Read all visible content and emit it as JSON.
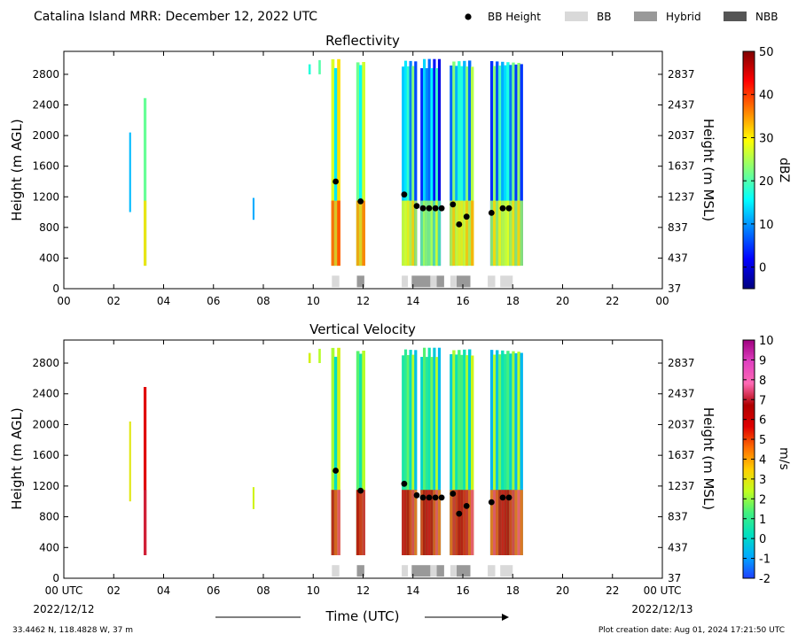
{
  "header": {
    "title": "Catalina Island MRR:  December 12, 2022 UTC",
    "legend": [
      {
        "label": "BB Height",
        "kind": "dot",
        "color": "#000000"
      },
      {
        "label": "BB",
        "kind": "box",
        "color": "#d9d9d9"
      },
      {
        "label": "Hybrid",
        "kind": "box",
        "color": "#999999"
      },
      {
        "label": "NBB",
        "kind": "box",
        "color": "#555555"
      }
    ]
  },
  "footer": {
    "location": "33.4462 N, 118.4828 W, 37 m",
    "created": "Plot creation date: Aug 01, 2024 17:21:50 UTC",
    "start_date": "2022/12/12",
    "end_date": "2022/12/13",
    "time_axis_label": "Time (UTC)"
  },
  "chart_data": [
    {
      "type": "heatmap",
      "title": "Reflectivity",
      "ylabel": "Height (m AGL)",
      "y2label": "Height (m MSL)",
      "xlim": [
        0,
        24
      ],
      "ylim": [
        0,
        3100
      ],
      "x_ticks": [
        "00",
        "02",
        "04",
        "06",
        "08",
        "10",
        "12",
        "14",
        "16",
        "18",
        "20",
        "22",
        "00"
      ],
      "y_ticks": [
        0,
        400,
        800,
        1200,
        1600,
        2000,
        2400,
        2800
      ],
      "y2_ticks": [
        37,
        437,
        837,
        1237,
        1637,
        2037,
        2437,
        2837
      ],
      "colorbar": {
        "label": "dBZ",
        "range": [
          -5,
          50
        ],
        "ticks": [
          0,
          10,
          20,
          30,
          40,
          50
        ],
        "colors": [
          "#00007f",
          "#0000ff",
          "#007fff",
          "#00ffff",
          "#7fff7f",
          "#ffff00",
          "#ff7f00",
          "#ff0000",
          "#7f0000"
        ]
      },
      "bright_band_height_m_agl": [
        {
          "x": 10.9,
          "y": 1400
        },
        {
          "x": 11.9,
          "y": 1140
        },
        {
          "x": 13.65,
          "y": 1230
        },
        {
          "x": 14.15,
          "y": 1080
        },
        {
          "x": 14.4,
          "y": 1050
        },
        {
          "x": 14.65,
          "y": 1050
        },
        {
          "x": 14.9,
          "y": 1050
        },
        {
          "x": 15.15,
          "y": 1050
        },
        {
          "x": 15.6,
          "y": 1100
        },
        {
          "x": 15.85,
          "y": 840
        },
        {
          "x": 16.15,
          "y": 940
        },
        {
          "x": 17.15,
          "y": 990
        },
        {
          "x": 17.6,
          "y": 1050
        },
        {
          "x": 17.85,
          "y": 1050
        }
      ],
      "bb_type_segments": [
        {
          "start": 10.75,
          "end": 11.05,
          "class": "BB"
        },
        {
          "start": 11.75,
          "end": 12.05,
          "class": "Hybrid"
        },
        {
          "start": 13.55,
          "end": 13.8,
          "class": "BB"
        },
        {
          "start": 13.95,
          "end": 14.7,
          "class": "Hybrid"
        },
        {
          "start": 14.7,
          "end": 14.95,
          "class": "BB"
        },
        {
          "start": 14.95,
          "end": 15.25,
          "class": "Hybrid"
        },
        {
          "start": 15.5,
          "end": 15.75,
          "class": "BB"
        },
        {
          "start": 15.75,
          "end": 16.3,
          "class": "Hybrid"
        },
        {
          "start": 17.0,
          "end": 17.3,
          "class": "BB"
        },
        {
          "start": 17.5,
          "end": 18.0,
          "class": "BB"
        }
      ],
      "echo_columns": [
        {
          "x": 2.65,
          "w": 0.06,
          "ytop": 2100,
          "ybot": 1000,
          "val": 8
        },
        {
          "x": 3.25,
          "w": 0.1,
          "ytop": 2600,
          "ybot": 300,
          "val": 14
        },
        {
          "x": 7.6,
          "w": 0.06,
          "ytop": 1300,
          "ybot": 900,
          "val": 2
        },
        {
          "x": 9.85,
          "w": 0.08,
          "ytop": 3000,
          "ybot": 2800,
          "val": 8
        },
        {
          "x": 10.25,
          "w": 0.08,
          "ytop": 3000,
          "ybot": 2800,
          "val": 12
        },
        {
          "x": 10.9,
          "w": 0.35,
          "ytop": 3000,
          "ybot": 300,
          "val": 22
        },
        {
          "x": 11.9,
          "w": 0.35,
          "ytop": 3000,
          "ybot": 300,
          "val": 20
        },
        {
          "x": 13.85,
          "w": 0.6,
          "ytop": 3000,
          "ybot": 300,
          "val": 15
        },
        {
          "x": 14.7,
          "w": 0.8,
          "ytop": 3000,
          "ybot": 300,
          "val": 10
        },
        {
          "x": 15.95,
          "w": 0.95,
          "ytop": 3000,
          "ybot": 300,
          "val": 16
        },
        {
          "x": 17.75,
          "w": 1.3,
          "ytop": 3000,
          "ybot": 300,
          "val": 14
        }
      ]
    },
    {
      "type": "heatmap",
      "title": "Vertical Velocity",
      "ylabel": "Height (m AGL)",
      "y2label": "Height (m MSL)",
      "xlim": [
        0,
        24
      ],
      "ylim": [
        0,
        3100
      ],
      "x_ticks": [
        "00 UTC",
        "02",
        "04",
        "06",
        "08",
        "10",
        "12",
        "14",
        "16",
        "18",
        "20",
        "22",
        "00 UTC"
      ],
      "y_ticks": [
        0,
        400,
        800,
        1200,
        1600,
        2000,
        2400,
        2800
      ],
      "y2_ticks": [
        37,
        437,
        837,
        1237,
        1637,
        2037,
        2437,
        2837
      ],
      "colorbar": {
        "label": "m/s",
        "range": [
          -2,
          10
        ],
        "ticks": [
          -2,
          -1,
          0,
          1,
          2,
          3,
          4,
          5,
          6,
          7,
          8,
          9,
          10
        ],
        "colors": [
          "#1f3fff",
          "#00aaff",
          "#00e0c0",
          "#40f080",
          "#c0ff20",
          "#ffd000",
          "#ff7000",
          "#e00000",
          "#b00000",
          "#ff69b4",
          "#e040c0",
          "#a00080"
        ]
      },
      "bright_band_height_m_agl": [
        {
          "x": 10.9,
          "y": 1400
        },
        {
          "x": 11.9,
          "y": 1140
        },
        {
          "x": 13.65,
          "y": 1230
        },
        {
          "x": 14.15,
          "y": 1080
        },
        {
          "x": 14.4,
          "y": 1050
        },
        {
          "x": 14.65,
          "y": 1050
        },
        {
          "x": 14.9,
          "y": 1050
        },
        {
          "x": 15.15,
          "y": 1050
        },
        {
          "x": 15.6,
          "y": 1100
        },
        {
          "x": 15.85,
          "y": 840
        },
        {
          "x": 16.15,
          "y": 940
        },
        {
          "x": 17.15,
          "y": 990
        },
        {
          "x": 17.6,
          "y": 1050
        },
        {
          "x": 17.85,
          "y": 1050
        }
      ],
      "bb_type_segments": [
        {
          "start": 10.75,
          "end": 11.05,
          "class": "BB"
        },
        {
          "start": 11.75,
          "end": 12.05,
          "class": "Hybrid"
        },
        {
          "start": 13.55,
          "end": 13.8,
          "class": "BB"
        },
        {
          "start": 13.95,
          "end": 14.7,
          "class": "Hybrid"
        },
        {
          "start": 14.7,
          "end": 14.95,
          "class": "BB"
        },
        {
          "start": 14.95,
          "end": 15.25,
          "class": "Hybrid"
        },
        {
          "start": 15.5,
          "end": 15.75,
          "class": "BB"
        },
        {
          "start": 15.75,
          "end": 16.3,
          "class": "Hybrid"
        },
        {
          "start": 17.0,
          "end": 17.3,
          "class": "BB"
        },
        {
          "start": 17.5,
          "end": 18.0,
          "class": "BB"
        }
      ],
      "echo_columns": [
        {
          "x": 2.65,
          "w": 0.06,
          "ytop": 2100,
          "ybot": 1000,
          "val": 2.3
        },
        {
          "x": 3.25,
          "w": 0.1,
          "ytop": 2600,
          "ybot": 300,
          "val": 4.5
        },
        {
          "x": 7.6,
          "w": 0.06,
          "ytop": 1300,
          "ybot": 900,
          "val": 1.2
        },
        {
          "x": 9.85,
          "w": 0.08,
          "ytop": 3000,
          "ybot": 2800,
          "val": 1.2
        },
        {
          "x": 10.25,
          "w": 0.08,
          "ytop": 3000,
          "ybot": 2800,
          "val": 1.0
        },
        {
          "x": 10.9,
          "w": 0.35,
          "ytop": 3000,
          "ybot": 300,
          "val": 1.3
        },
        {
          "x": 11.9,
          "w": 0.35,
          "ytop": 3000,
          "ybot": 300,
          "val": 1.2
        },
        {
          "x": 13.85,
          "w": 0.6,
          "ytop": 3000,
          "ybot": 300,
          "val": 1.0
        },
        {
          "x": 14.7,
          "w": 0.8,
          "ytop": 3000,
          "ybot": 300,
          "val": 0.9
        },
        {
          "x": 15.95,
          "w": 0.95,
          "ytop": 3000,
          "ybot": 300,
          "val": 1.1
        },
        {
          "x": 17.75,
          "w": 1.3,
          "ytop": 3000,
          "ybot": 300,
          "val": 0.8
        }
      ]
    }
  ]
}
